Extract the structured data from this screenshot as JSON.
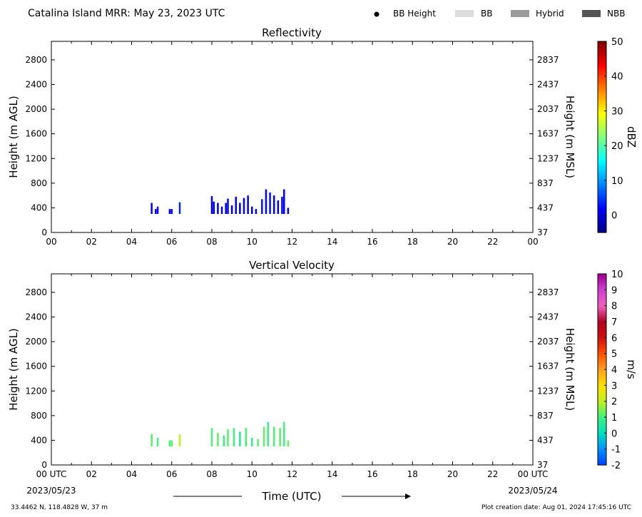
{
  "header": {
    "title": "Catalina Island MRR:  May 23, 2023 UTC",
    "legend": [
      {
        "label": "BB Height",
        "symbol": "dot",
        "color": "#000000"
      },
      {
        "label": "BB",
        "symbol": "box",
        "color": "#dcdcdc"
      },
      {
        "label": "Hybrid",
        "symbol": "box",
        "color": "#9a9a9a"
      },
      {
        "label": "NBB",
        "symbol": "box",
        "color": "#555555"
      }
    ]
  },
  "footer": {
    "location": "33.4462 N, 118.4828 W, 37 m",
    "creation": "Plot creation date: Aug 01, 2024 17:45:16 UTC",
    "xlabel": "Time (UTC)",
    "start_tick": "00 UTC",
    "start_date": "2023/05/23",
    "end_tick": "00 UTC",
    "end_date": "2023/05/24"
  },
  "chart_data": [
    {
      "type": "heatmap",
      "title": "Reflectivity",
      "xlabel": "",
      "ylabel": "Height (m AGL)",
      "ylabel_right": "Height (m MSL)",
      "xlim": [
        0,
        24
      ],
      "ylim": [
        0,
        3100
      ],
      "x_ticks": [
        "00",
        "02",
        "04",
        "06",
        "08",
        "10",
        "12",
        "14",
        "16",
        "18",
        "20",
        "22",
        "00"
      ],
      "y_ticks": [
        0,
        400,
        800,
        1200,
        1600,
        2000,
        2400,
        2800
      ],
      "y_ticks_right": [
        37,
        437,
        837,
        1237,
        1637,
        2037,
        2437,
        2837
      ],
      "colorbar": {
        "label": "dBZ",
        "min": -5,
        "max": 50,
        "ticks": [
          0,
          10,
          20,
          30,
          40,
          50
        ],
        "colors": [
          "#00007f",
          "#0000ff",
          "#0080ff",
          "#00ffff",
          "#80ff80",
          "#ffff00",
          "#ff8000",
          "#ff0000",
          "#7f0000"
        ]
      },
      "columns": [
        {
          "t": 5.0,
          "bottom": 300,
          "top": 480,
          "value": 1
        },
        {
          "t": 5.2,
          "bottom": 300,
          "top": 380,
          "value": 0
        },
        {
          "t": 5.3,
          "bottom": 300,
          "top": 420,
          "value": 1
        },
        {
          "t": 5.9,
          "bottom": 300,
          "top": 380,
          "value": 0
        },
        {
          "t": 6.0,
          "bottom": 300,
          "top": 380,
          "value": 1
        },
        {
          "t": 6.4,
          "bottom": 300,
          "top": 490,
          "value": 4
        },
        {
          "t": 8.0,
          "bottom": 300,
          "top": 590,
          "value": 0
        },
        {
          "t": 8.1,
          "bottom": 300,
          "top": 500,
          "value": 1
        },
        {
          "t": 8.3,
          "bottom": 300,
          "top": 480,
          "value": 0
        },
        {
          "t": 8.5,
          "bottom": 300,
          "top": 420,
          "value": 1
        },
        {
          "t": 8.7,
          "bottom": 300,
          "top": 480,
          "value": 0
        },
        {
          "t": 8.8,
          "bottom": 300,
          "top": 550,
          "value": 2
        },
        {
          "t": 9.0,
          "bottom": 300,
          "top": 440,
          "value": 0
        },
        {
          "t": 9.2,
          "bottom": 300,
          "top": 580,
          "value": 1
        },
        {
          "t": 9.4,
          "bottom": 300,
          "top": 480,
          "value": 0
        },
        {
          "t": 9.6,
          "bottom": 300,
          "top": 560,
          "value": 2
        },
        {
          "t": 9.8,
          "bottom": 300,
          "top": 600,
          "value": 1
        },
        {
          "t": 10.0,
          "bottom": 300,
          "top": 420,
          "value": 0
        },
        {
          "t": 10.2,
          "bottom": 300,
          "top": 380,
          "value": 0
        },
        {
          "t": 10.5,
          "bottom": 300,
          "top": 540,
          "value": 3
        },
        {
          "t": 10.7,
          "bottom": 300,
          "top": 700,
          "value": 2
        },
        {
          "t": 10.9,
          "bottom": 300,
          "top": 650,
          "value": 3
        },
        {
          "t": 11.1,
          "bottom": 300,
          "top": 600,
          "value": 1
        },
        {
          "t": 11.3,
          "bottom": 300,
          "top": 520,
          "value": 2
        },
        {
          "t": 11.5,
          "bottom": 300,
          "top": 580,
          "value": 1
        },
        {
          "t": 11.6,
          "bottom": 300,
          "top": 700,
          "value": 2
        },
        {
          "t": 11.8,
          "bottom": 300,
          "top": 400,
          "value": 1
        }
      ]
    },
    {
      "type": "heatmap",
      "title": "Vertical Velocity",
      "xlabel": "Time (UTC)",
      "ylabel": "Height (m AGL)",
      "ylabel_right": "Height (m MSL)",
      "xlim": [
        0,
        24
      ],
      "ylim": [
        0,
        3100
      ],
      "x_ticks": [
        "00 UTC",
        "02",
        "04",
        "06",
        "08",
        "10",
        "12",
        "14",
        "16",
        "18",
        "20",
        "22",
        "00 UTC"
      ],
      "y_ticks": [
        0,
        400,
        800,
        1200,
        1600,
        2000,
        2400,
        2800
      ],
      "y_ticks_right": [
        37,
        437,
        837,
        1237,
        1637,
        2037,
        2437,
        2837
      ],
      "colorbar": {
        "label": "m/s",
        "min": -2,
        "max": 10,
        "ticks": [
          -2,
          -1,
          0,
          1,
          2,
          3,
          4,
          5,
          6,
          7,
          8,
          9,
          10
        ],
        "colors": [
          "#0040ff",
          "#0090ff",
          "#00e0c0",
          "#40f080",
          "#c0f020",
          "#ffe000",
          "#ffa020",
          "#ff5000",
          "#d01010",
          "#b00020",
          "#f060c0",
          "#d040d0",
          "#a00090"
        ]
      },
      "columns": [
        {
          "t": 5.0,
          "bottom": 300,
          "top": 500,
          "value": 1.2
        },
        {
          "t": 5.3,
          "bottom": 300,
          "top": 440,
          "value": 1.0
        },
        {
          "t": 5.9,
          "bottom": 300,
          "top": 400,
          "value": 1.1
        },
        {
          "t": 6.0,
          "bottom": 300,
          "top": 400,
          "value": 1.2
        },
        {
          "t": 6.4,
          "bottom": 300,
          "top": 500,
          "value": 2.0
        },
        {
          "t": 8.0,
          "bottom": 300,
          "top": 600,
          "value": 1.1
        },
        {
          "t": 8.3,
          "bottom": 300,
          "top": 520,
          "value": 1.3
        },
        {
          "t": 8.6,
          "bottom": 300,
          "top": 480,
          "value": 0.9
        },
        {
          "t": 8.8,
          "bottom": 300,
          "top": 580,
          "value": 1.2
        },
        {
          "t": 9.1,
          "bottom": 300,
          "top": 600,
          "value": 1.0
        },
        {
          "t": 9.4,
          "bottom": 300,
          "top": 540,
          "value": 0.6
        },
        {
          "t": 9.7,
          "bottom": 300,
          "top": 600,
          "value": 1.1
        },
        {
          "t": 10.0,
          "bottom": 300,
          "top": 440,
          "value": 0.8
        },
        {
          "t": 10.3,
          "bottom": 300,
          "top": 420,
          "value": 1.2
        },
        {
          "t": 10.6,
          "bottom": 300,
          "top": 620,
          "value": 1.3
        },
        {
          "t": 10.8,
          "bottom": 300,
          "top": 700,
          "value": 0.9
        },
        {
          "t": 11.1,
          "bottom": 300,
          "top": 620,
          "value": 1.1
        },
        {
          "t": 11.4,
          "bottom": 300,
          "top": 600,
          "value": 1.2
        },
        {
          "t": 11.6,
          "bottom": 300,
          "top": 700,
          "value": 1.0
        },
        {
          "t": 11.8,
          "bottom": 300,
          "top": 400,
          "value": 1.3
        }
      ]
    }
  ]
}
